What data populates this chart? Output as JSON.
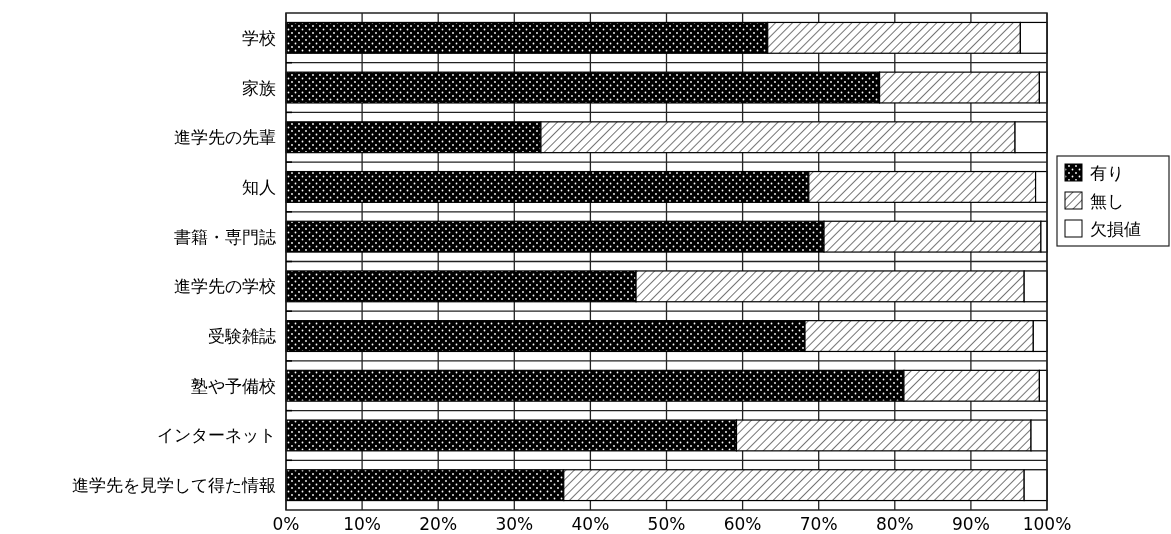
{
  "chart_data": {
    "type": "bar",
    "orientation": "horizontal",
    "stacked": true,
    "categories": [
      "学校",
      "家族",
      "進学先の先輩",
      "知人",
      "書籍・専門誌",
      "進学先の学校",
      "受験雑誌",
      "塾や予備校",
      "インターネット",
      "進学先を見学して得た情報"
    ],
    "series": [
      {
        "name": "有り",
        "color": "#000000",
        "values": [
          63.3,
          78.0,
          33.5,
          68.7,
          70.7,
          46.0,
          68.2,
          81.2,
          59.2,
          36.5
        ]
      },
      {
        "name": "無し",
        "color": "#000000",
        "values": [
          33.2,
          21.0,
          62.3,
          29.8,
          28.5,
          51.0,
          30.0,
          17.8,
          38.7,
          60.5
        ]
      },
      {
        "name": "欠損値",
        "color": "#ffffff",
        "values": [
          3.5,
          1.0,
          4.2,
          1.5,
          0.8,
          3.0,
          1.8,
          1.0,
          2.1,
          3.0
        ]
      }
    ],
    "xlim": [
      0,
      100
    ],
    "xticks": [
      {
        "value": 0,
        "label": "0%"
      },
      {
        "value": 10,
        "label": "10%"
      },
      {
        "value": 20,
        "label": "20%"
      },
      {
        "value": 30,
        "label": "30%"
      },
      {
        "value": 40,
        "label": "40%"
      },
      {
        "value": 50,
        "label": "50%"
      },
      {
        "value": 60,
        "label": "60%"
      },
      {
        "value": 70,
        "label": "70%"
      },
      {
        "value": 80,
        "label": "80%"
      },
      {
        "value": 90,
        "label": "90%"
      },
      {
        "value": 100,
        "label": "100%"
      }
    ],
    "grid": true,
    "legend": "right"
  }
}
